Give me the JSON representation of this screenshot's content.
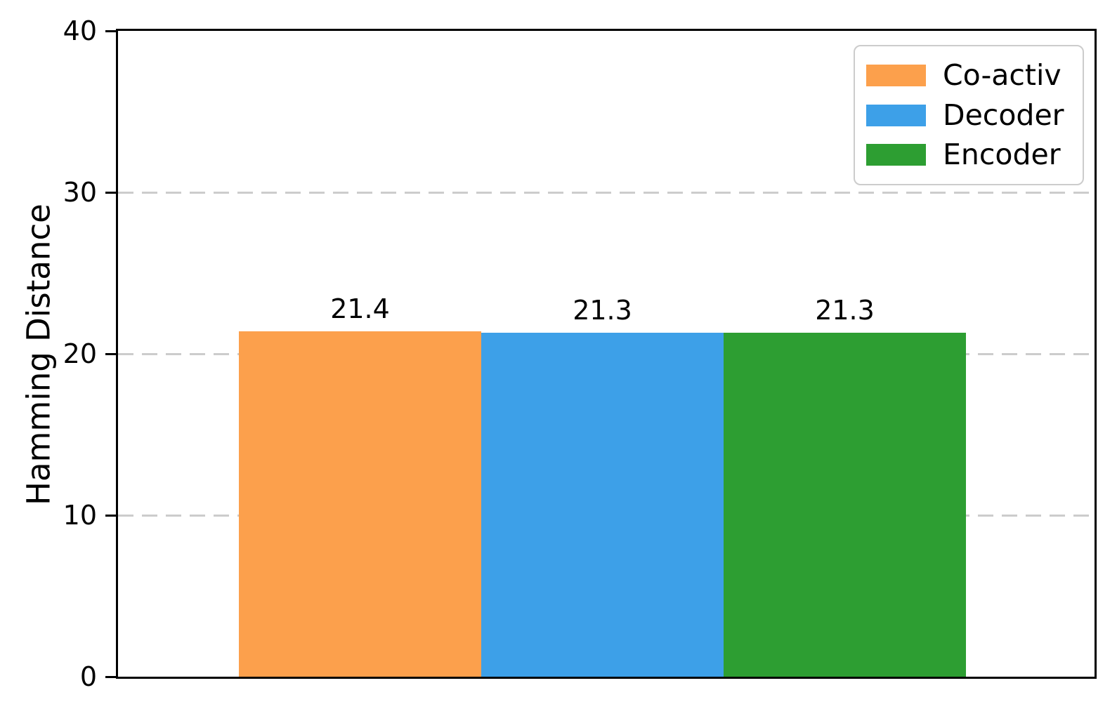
{
  "chart_data": {
    "type": "bar",
    "title": "",
    "xlabel": "",
    "ylabel": "Hamming Distance",
    "ylim": [
      0,
      40
    ],
    "yticks": [
      0,
      10,
      20,
      30,
      40
    ],
    "gridlines_y": [
      10,
      20,
      30
    ],
    "grid_style": "dashed",
    "grid_color": "#cccccc",
    "spine_color": "#000000",
    "legend_position": "upper right",
    "categories": [
      "Co-activ",
      "Decoder",
      "Encoder"
    ],
    "values": [
      21.4,
      21.3,
      21.3
    ],
    "bar_labels": [
      "21.4",
      "21.3",
      "21.3"
    ],
    "colors": [
      "#fca04c",
      "#3da0e8",
      "#2d9e32"
    ],
    "legend": {
      "entries": [
        {
          "label": "Co-activ",
          "color": "#fca04c"
        },
        {
          "label": "Decoder",
          "color": "#3da0e8"
        },
        {
          "label": "Encoder",
          "color": "#2d9e32"
        }
      ]
    }
  }
}
